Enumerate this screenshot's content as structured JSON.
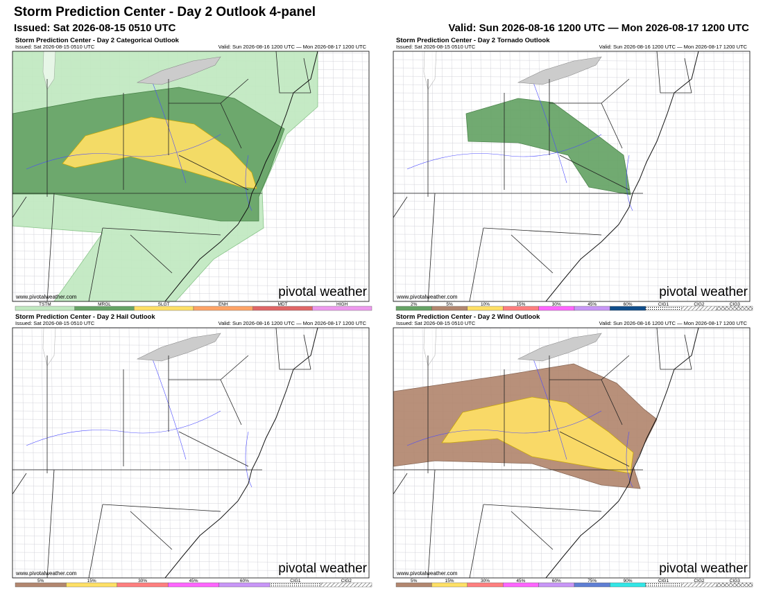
{
  "header": {
    "title": "Storm Prediction Center - Day 2 Outlook 4-panel",
    "issued": "Issued: Sat 2026-08-15 0510 UTC",
    "valid": "Valid: Sun 2026-08-16 1200 UTC — Mon 2026-08-17 1200 UTC"
  },
  "panels": [
    {
      "title": "Storm Prediction Center - Day 2 Categorical Outlook",
      "issued": "Issued: Sat 2026-08-15 0510 UTC",
      "valid": "Valid: Sun 2026-08-16 1200 UTC — Mon 2026-08-17 1200 UTC",
      "credit": "www.pivotalweather.com",
      "brand": "pivotal weather",
      "legend": [
        {
          "label": "TSTM",
          "color": "#c1e9c1"
        },
        {
          "label": "MRGL",
          "color": "#66a366"
        },
        {
          "label": "SLGT",
          "color": "#ffe066"
        },
        {
          "label": "ENH",
          "color": "#ffa366"
        },
        {
          "label": "MDT",
          "color": "#e06666"
        },
        {
          "label": "HIGH",
          "color": "#ee99ee"
        }
      ]
    },
    {
      "title": "Storm Prediction Center - Day 2 Tornado Outlook",
      "issued": "Issued: Sat 2026-08-15 0510 UTC",
      "valid": "Valid: Sun 2026-08-16 1200 UTC — Mon 2026-08-17 1200 UTC",
      "credit": "www.pivotalweather.com",
      "brand": "pivotal weather",
      "legend": [
        {
          "label": "2%",
          "color": "#66a366"
        },
        {
          "label": "5%",
          "color": "#b2876f"
        },
        {
          "label": "10%",
          "color": "#ffe066"
        },
        {
          "label": "15%",
          "color": "#ff7f7f"
        },
        {
          "label": "30%",
          "color": "#ff66ff"
        },
        {
          "label": "45%",
          "color": "#c896f7"
        },
        {
          "label": "60%",
          "color": "#104e8b"
        },
        {
          "label": "CIG1",
          "pattern": "dots"
        },
        {
          "label": "CIG2",
          "pattern": "hatch"
        },
        {
          "label": "CIG3",
          "pattern": "crosshatch"
        }
      ]
    },
    {
      "title": "Storm Prediction Center - Day 2 Hail Outlook",
      "issued": "Issued: Sat 2026-08-15 0510 UTC",
      "valid": "Valid: Sun 2026-08-16 1200 UTC — Mon 2026-08-17 1200 UTC",
      "credit": "www.pivotalweather.com",
      "brand": "pivotal weather",
      "legend": [
        {
          "label": "5%",
          "color": "#b2876f"
        },
        {
          "label": "15%",
          "color": "#ffe066"
        },
        {
          "label": "30%",
          "color": "#ff7f7f"
        },
        {
          "label": "45%",
          "color": "#ff66ff"
        },
        {
          "label": "60%",
          "color": "#c896f7"
        },
        {
          "label": "CIG1",
          "pattern": "dots"
        },
        {
          "label": "CIG2",
          "pattern": "hatch"
        }
      ]
    },
    {
      "title": "Storm Prediction Center - Day 2 Wind Outlook",
      "issued": "Issued: Sat 2026-08-15 0510 UTC",
      "valid": "Valid: Sun 2026-08-16 1200 UTC — Mon 2026-08-17 1200 UTC",
      "credit": "www.pivotalweather.com",
      "brand": "pivotal weather",
      "legend": [
        {
          "label": "5%",
          "color": "#b2876f"
        },
        {
          "label": "15%",
          "color": "#ffe066"
        },
        {
          "label": "30%",
          "color": "#ff7f7f"
        },
        {
          "label": "45%",
          "color": "#ff66ff"
        },
        {
          "label": "60%",
          "color": "#c896f7"
        },
        {
          "label": "75%",
          "color": "#5f7fd4"
        },
        {
          "label": "90%",
          "color": "#33e6e6"
        },
        {
          "label": "CIG1",
          "pattern": "dots"
        },
        {
          "label": "CIG2",
          "pattern": "hatch"
        },
        {
          "label": "CIG3",
          "pattern": "crosshatch"
        }
      ]
    }
  ]
}
